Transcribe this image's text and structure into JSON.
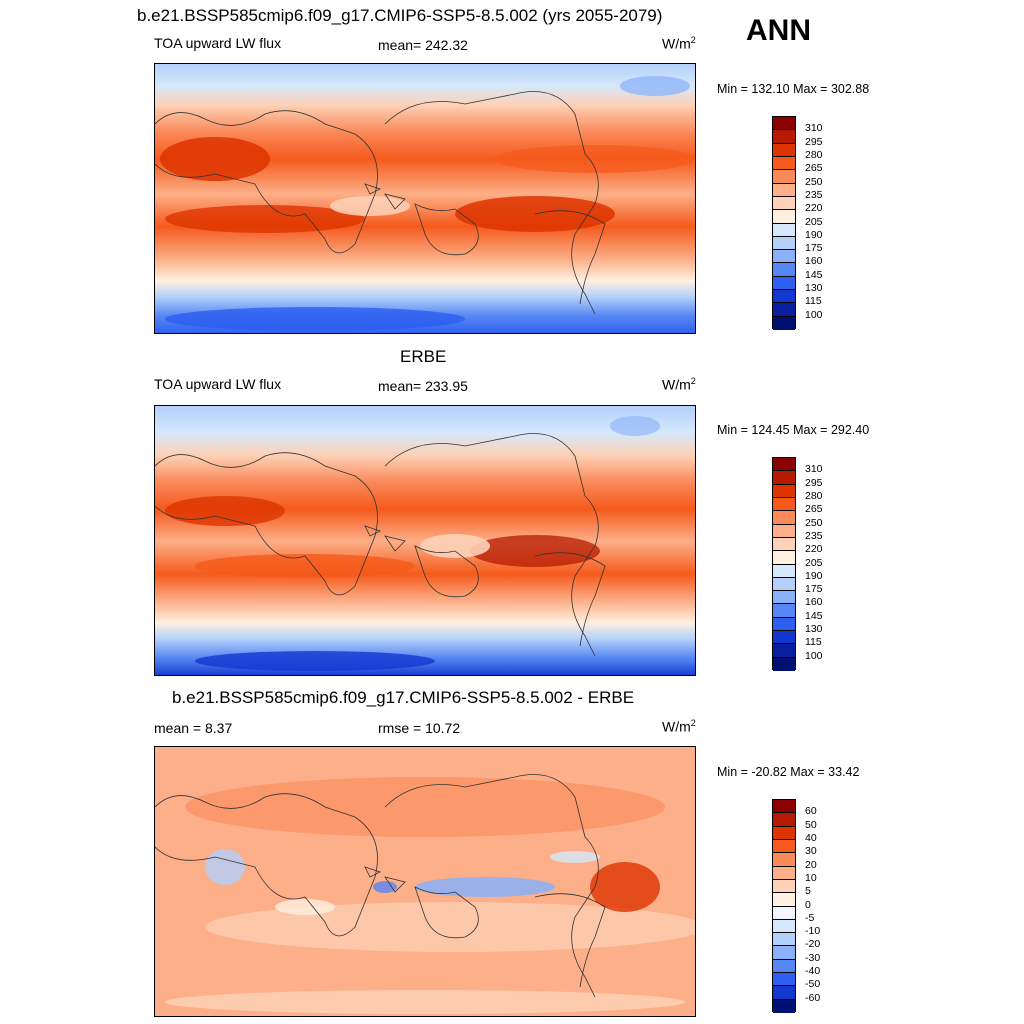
{
  "header": {
    "case_title": "b.e21.BSSP585cmip6.f09_g17.CMIP6-SSP5-8.5.002 (yrs 2055-2079)",
    "season": "ANN"
  },
  "panels": [
    {
      "id": "model",
      "title": "",
      "left_label": "TOA upward LW flux",
      "center_label": "mean= 242.32",
      "units_base": "W/m",
      "units_exp": "2",
      "minmax": "Min = 132.10 Max = 302.88",
      "colorbar_labels": [
        "310",
        "295",
        "280",
        "265",
        "250",
        "235",
        "220",
        "205",
        "190",
        "175",
        "160",
        "145",
        "130",
        "115",
        "100"
      ]
    },
    {
      "id": "obs",
      "title": "ERBE",
      "left_label": "TOA upward LW flux",
      "center_label": "mean= 233.95",
      "units_base": "W/m",
      "units_exp": "2",
      "minmax": "Min = 124.45 Max = 292.40",
      "colorbar_labels": [
        "310",
        "295",
        "280",
        "265",
        "250",
        "235",
        "220",
        "205",
        "190",
        "175",
        "160",
        "145",
        "130",
        "115",
        "100"
      ]
    },
    {
      "id": "diff",
      "title": "b.e21.BSSP585cmip6.f09_g17.CMIP6-SSP5-8.5.002 - ERBE",
      "left_label": "mean =   8.37",
      "center_label": "rmse =  10.72",
      "units_base": "W/m",
      "units_exp": "2",
      "minmax": "Min = -20.82 Max =  33.42",
      "colorbar_labels": [
        "60",
        "50",
        "40",
        "30",
        "20",
        "10",
        "5",
        "0",
        "-5",
        "-10",
        "-20",
        "-30",
        "-40",
        "-50",
        "-60"
      ]
    }
  ],
  "colors": {
    "abs_scale": [
      "#8b0000",
      "#b61a00",
      "#dd3400",
      "#f55a1c",
      "#fa8a5a",
      "#fcaf88",
      "#fdd2b8",
      "#fff0e0",
      "#d6e8fb",
      "#b3d0fb",
      "#88b1f9",
      "#5686f3",
      "#2c5ef0",
      "#1238d0",
      "#0a1fa0",
      "#001070"
    ],
    "diff_scale": [
      "#8b0000",
      "#b61a00",
      "#dd3400",
      "#f55a1c",
      "#fa8a5a",
      "#fcaf88",
      "#fdd2b8",
      "#fff0e0",
      "#f5f5ff",
      "#d6e8fb",
      "#b3d0fb",
      "#88b1f9",
      "#5686f3",
      "#2c5ef0",
      "#1238d0",
      "#001070"
    ]
  }
}
